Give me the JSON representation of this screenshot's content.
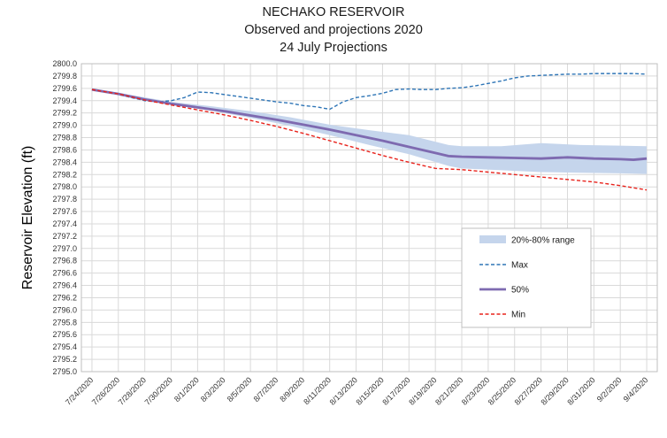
{
  "chart_data": {
    "type": "line",
    "title": [
      "NECHAKO RESERVOIR",
      "Observed and projections 2020",
      "24 July Projections"
    ],
    "ylabel": "Reservoir Elevation (ft)",
    "xlabel": "",
    "ylim": [
      2795.0,
      2800.0
    ],
    "y_step": 0.2,
    "grid": true,
    "legend_position": "inside-right",
    "x_start": "7/24/2020",
    "x_end": "9/4/2020",
    "x_tick_labels": [
      "7/24/2020",
      "7/26/2020",
      "7/28/2020",
      "7/30/2020",
      "8/1/2020",
      "8/3/2020",
      "8/5/2020",
      "8/7/2020",
      "8/9/2020",
      "8/11/2020",
      "8/13/2020",
      "8/15/2020",
      "8/17/2020",
      "8/19/2020",
      "8/21/2020",
      "8/23/2020",
      "8/25/2020",
      "8/27/2020",
      "8/29/2020",
      "8/31/2020",
      "9/2/2020",
      "9/4/2020"
    ],
    "series": [
      {
        "name": "20%-80% range",
        "kind": "band",
        "color": "#c5d5ec",
        "x": [
          "7/24/2020",
          "7/27/2020",
          "7/30/2020",
          "8/2/2020",
          "8/5/2020",
          "8/8/2020",
          "8/11/2020",
          "8/14/2020",
          "8/17/2020",
          "8/20/2020",
          "8/21/2020",
          "8/24/2020",
          "8/27/2020",
          "8/30/2020",
          "9/2/2020",
          "9/4/2020"
        ],
        "low": [
          2799.57,
          2799.48,
          2799.34,
          2799.24,
          2799.12,
          2798.99,
          2798.84,
          2798.68,
          2798.53,
          2798.34,
          2798.3,
          2798.27,
          2798.24,
          2798.23,
          2798.22,
          2798.21
        ],
        "high": [
          2799.57,
          2799.49,
          2799.38,
          2799.31,
          2799.23,
          2799.13,
          2799.01,
          2798.92,
          2798.84,
          2798.68,
          2798.66,
          2798.66,
          2798.71,
          2798.68,
          2798.67,
          2798.66
        ]
      },
      {
        "name": "Max",
        "kind": "line",
        "style": "dashed",
        "color": "#2e75b6",
        "x": [
          "7/24/2020",
          "7/25/2020",
          "7/26/2020",
          "7/27/2020",
          "7/28/2020",
          "7/29/2020",
          "7/30/2020",
          "7/31/2020",
          "8/1/2020",
          "8/2/2020",
          "8/3/2020",
          "8/4/2020",
          "8/5/2020",
          "8/6/2020",
          "8/7/2020",
          "8/8/2020",
          "8/9/2020",
          "8/10/2020",
          "8/11/2020",
          "8/12/2020",
          "8/13/2020",
          "8/14/2020",
          "8/15/2020",
          "8/16/2020",
          "8/17/2020",
          "8/18/2020",
          "8/19/2020",
          "8/20/2020",
          "8/21/2020",
          "8/22/2020",
          "8/23/2020",
          "8/24/2020",
          "8/25/2020",
          "8/26/2020",
          "8/27/2020",
          "8/28/2020",
          "8/29/2020",
          "8/30/2020",
          "8/31/2020",
          "9/1/2020",
          "9/2/2020",
          "9/3/2020",
          "9/4/2020"
        ],
        "values": [
          2799.58,
          2799.55,
          2799.5,
          2799.45,
          2799.4,
          2799.38,
          2799.4,
          2799.45,
          2799.54,
          2799.53,
          2799.5,
          2799.47,
          2799.44,
          2799.41,
          2799.38,
          2799.36,
          2799.32,
          2799.3,
          2799.26,
          2799.38,
          2799.45,
          2799.48,
          2799.52,
          2799.58,
          2799.59,
          2799.58,
          2799.58,
          2799.6,
          2799.61,
          2799.64,
          2799.68,
          2799.72,
          2799.77,
          2799.8,
          2799.81,
          2799.82,
          2799.83,
          2799.83,
          2799.84,
          2799.84,
          2799.84,
          2799.84,
          2799.83
        ]
      },
      {
        "name": "50%",
        "kind": "line",
        "style": "solid",
        "color": "#7e6ab0",
        "x": [
          "7/24/2020",
          "7/26/2020",
          "7/28/2020",
          "7/30/2020",
          "8/1/2020",
          "8/3/2020",
          "8/5/2020",
          "8/7/2020",
          "8/9/2020",
          "8/11/2020",
          "8/13/2020",
          "8/15/2020",
          "8/17/2020",
          "8/19/2020",
          "8/20/2020",
          "8/21/2020",
          "8/23/2020",
          "8/25/2020",
          "8/27/2020",
          "8/29/2020",
          "8/31/2020",
          "9/2/2020",
          "9/3/2020",
          "9/4/2020"
        ],
        "values": [
          2799.58,
          2799.51,
          2799.42,
          2799.35,
          2799.29,
          2799.23,
          2799.16,
          2799.09,
          2799.01,
          2798.93,
          2798.84,
          2798.75,
          2798.65,
          2798.55,
          2798.5,
          2798.49,
          2798.48,
          2798.47,
          2798.46,
          2798.48,
          2798.46,
          2798.45,
          2798.44,
          2798.46
        ]
      },
      {
        "name": "Min",
        "kind": "line",
        "style": "dashed",
        "color": "#e8231c",
        "x": [
          "7/24/2020",
          "7/26/2020",
          "7/28/2020",
          "7/30/2020",
          "8/1/2020",
          "8/3/2020",
          "8/5/2020",
          "8/7/2020",
          "8/9/2020",
          "8/11/2020",
          "8/13/2020",
          "8/15/2020",
          "8/17/2020",
          "8/19/2020",
          "8/21/2020",
          "8/23/2020",
          "8/25/2020",
          "8/27/2020",
          "8/29/2020",
          "8/31/2020",
          "9/2/2020",
          "9/4/2020"
        ],
        "values": [
          2799.58,
          2799.51,
          2799.41,
          2799.33,
          2799.25,
          2799.17,
          2799.08,
          2798.98,
          2798.87,
          2798.75,
          2798.63,
          2798.51,
          2798.4,
          2798.3,
          2798.28,
          2798.24,
          2798.2,
          2798.16,
          2798.12,
          2798.08,
          2798.02,
          2797.95
        ]
      }
    ],
    "legend": [
      {
        "label": "20%-80% range",
        "kind": "band",
        "color": "#c5d5ec"
      },
      {
        "label": "Max",
        "kind": "dashed",
        "color": "#2e75b6"
      },
      {
        "label": "50%",
        "kind": "solid",
        "color": "#7e6ab0"
      },
      {
        "label": "Min",
        "kind": "dashed",
        "color": "#e8231c"
      }
    ]
  }
}
